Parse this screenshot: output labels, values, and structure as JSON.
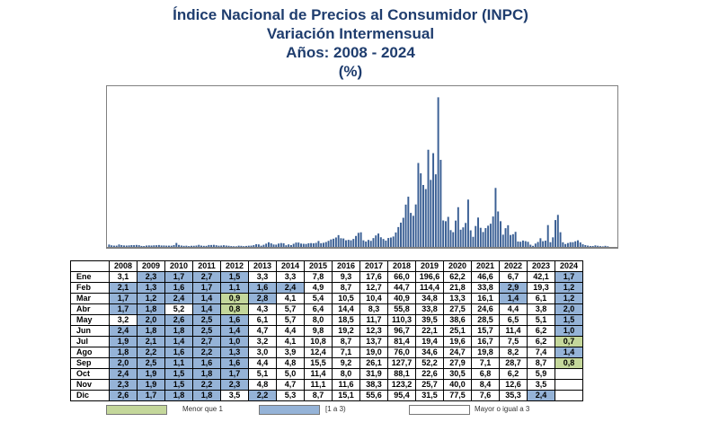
{
  "title": {
    "line1": "Índice Nacional de Precios al Consumidor (INPC)",
    "line2": "Variación Intermensual",
    "line3": "Años: 2008 - 2024",
    "line4": "(%)"
  },
  "chart_data": {
    "type": "bar",
    "x_unit": "month",
    "years": [
      "2008",
      "2009",
      "2010",
      "2011",
      "2012",
      "2013",
      "2014",
      "2015",
      "2016",
      "2017",
      "2018",
      "2019",
      "2020",
      "2021",
      "2022",
      "2023",
      "2024"
    ],
    "months": [
      "Ene",
      "Feb",
      "Mar",
      "Abr",
      "May",
      "Jun",
      "Jul",
      "Ago",
      "Sep",
      "Oct",
      "Nov",
      "Dic"
    ],
    "ylim": [
      0,
      210
    ],
    "grid": false,
    "table_rows": [
      {
        "month": "Ene",
        "values": [
          "3,1",
          "2,3",
          "1,7",
          "2,7",
          "1,5",
          "3,3",
          "3,3",
          "7,8",
          "9,3",
          "17,6",
          "66,0",
          "196,6",
          "62,2",
          "46,6",
          "6,7",
          "42,1",
          "1,7"
        ]
      },
      {
        "month": "Feb",
        "values": [
          "2,1",
          "1,3",
          "1,6",
          "1,7",
          "1,1",
          "1,6",
          "2,4",
          "4,9",
          "8,7",
          "12,7",
          "44,7",
          "114,4",
          "21,8",
          "33,8",
          "2,9",
          "19,3",
          "1,2"
        ]
      },
      {
        "month": "Mar",
        "values": [
          "1,7",
          "1,2",
          "2,4",
          "1,4",
          "0,9",
          "2,8",
          "4,1",
          "5,4",
          "10,5",
          "10,4",
          "40,9",
          "34,8",
          "13,3",
          "16,1",
          "1,4",
          "6,1",
          "1,2"
        ]
      },
      {
        "month": "Abr",
        "values": [
          "1,7",
          "1,8",
          "5,2",
          "1,4",
          "0,8",
          "4,3",
          "5,7",
          "6,4",
          "14,4",
          "8,3",
          "55,8",
          "33,8",
          "27,5",
          "24,6",
          "4,4",
          "3,8",
          "2,0"
        ]
      },
      {
        "month": "May",
        "values": [
          "3,2",
          "2,0",
          "2,6",
          "2,5",
          "1,6",
          "6,1",
          "5,7",
          "8,0",
          "18,5",
          "11,7",
          "110,3",
          "39,5",
          "38,6",
          "28,5",
          "6,5",
          "5,1",
          "1,5"
        ]
      },
      {
        "month": "Jun",
        "values": [
          "2,4",
          "1,8",
          "1,8",
          "2,5",
          "1,4",
          "4,7",
          "4,4",
          "9,8",
          "19,2",
          "12,3",
          "96,7",
          "22,1",
          "25,1",
          "15,7",
          "11,4",
          "6,2",
          "1,0"
        ]
      },
      {
        "month": "Jul",
        "values": [
          "1,9",
          "2,1",
          "1,4",
          "2,7",
          "1,0",
          "3,2",
          "4,1",
          "10,8",
          "8,7",
          "13,7",
          "81,4",
          "19,4",
          "19,6",
          "16,7",
          "7,5",
          "6,2",
          "0,7"
        ]
      },
      {
        "month": "Ago",
        "values": [
          "1,8",
          "2,2",
          "1,6",
          "2,2",
          "1,3",
          "3,0",
          "3,9",
          "12,4",
          "7,1",
          "19,0",
          "76,0",
          "34,6",
          "24,7",
          "19,8",
          "8,2",
          "7,4",
          "1,4"
        ]
      },
      {
        "month": "Sep",
        "values": [
          "2,0",
          "2,5",
          "1,1",
          "1,6",
          "1,6",
          "4,4",
          "4,8",
          "15,5",
          "9,2",
          "26,1",
          "127,7",
          "52,2",
          "27,9",
          "7,1",
          "28,7",
          "8,7",
          "0,8"
        ]
      },
      {
        "month": "Oct",
        "values": [
          "2,4",
          "1,9",
          "1,5",
          "1,8",
          "1,7",
          "5,1",
          "5,0",
          "11,4",
          "8,0",
          "31,9",
          "88,1",
          "22,6",
          "30,5",
          "6,8",
          "6,2",
          "5,9",
          ""
        ]
      },
      {
        "month": "Nov",
        "values": [
          "2,3",
          "1,9",
          "1,5",
          "2,2",
          "2,3",
          "4,8",
          "4,7",
          "11,1",
          "11,6",
          "38,3",
          "123,2",
          "25,7",
          "40,0",
          "8,4",
          "12,6",
          "3,5",
          ""
        ]
      },
      {
        "month": "Dic",
        "values": [
          "2,6",
          "1,7",
          "1,8",
          "1,8",
          "3,5",
          "2,2",
          "5,3",
          "8,7",
          "15,1",
          "55,6",
          "95,4",
          "31,5",
          "77,5",
          "7,6",
          "35,3",
          "2,4",
          ""
        ]
      }
    ]
  },
  "legend": [
    {
      "label": "Menor que 1",
      "color": "#c4d79b"
    },
    {
      "label": "[1 a 3)",
      "color": "#95b3d7"
    },
    {
      "label": "Mayor o igual a 3",
      "color": "#ffffff"
    }
  ],
  "colors": {
    "bar": "#3a5f94",
    "axis": "#808080",
    "title": "#1f3d6e"
  }
}
